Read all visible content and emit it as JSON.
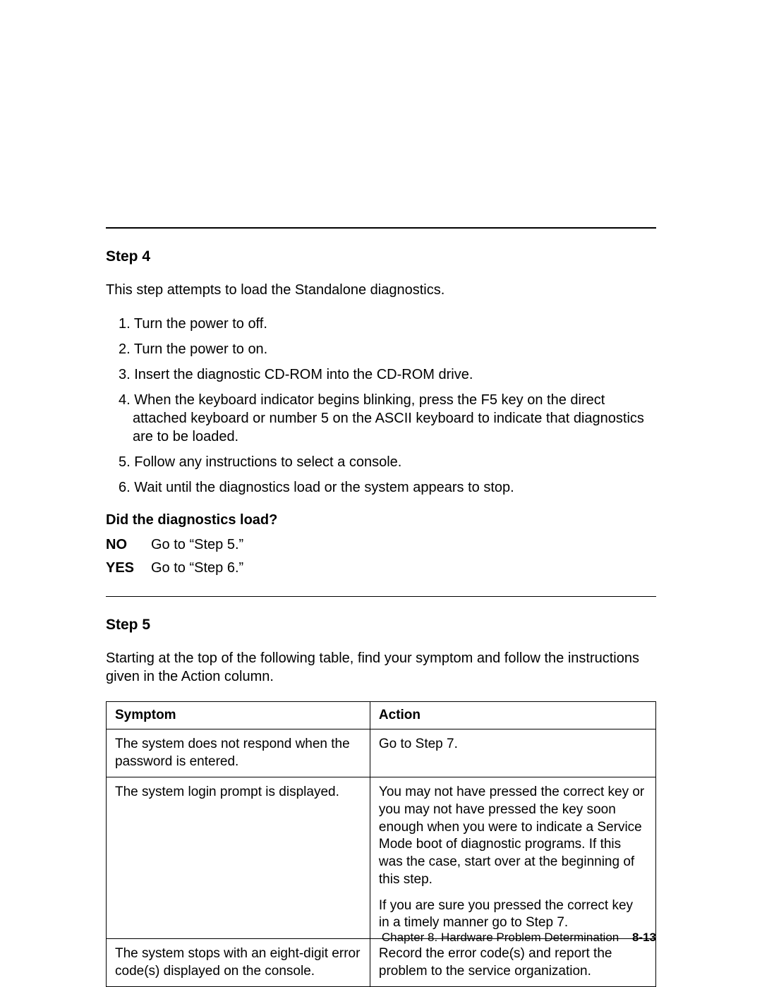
{
  "step4": {
    "heading": "Step 4",
    "intro": "This step attempts to load the Standalone diagnostics.",
    "list": [
      "Turn the power to off.",
      "Turn the power to on.",
      "Insert the diagnostic CD-ROM into the CD-ROM drive.",
      "When the keyboard indicator begins blinking, press the F5 key on the direct attached keyboard or number 5 on the ASCII keyboard to indicate that diagnostics are to be loaded.",
      "Follow any instructions to select a console.",
      "Wait until the diagnostics load or the system appears to stop."
    ],
    "question": "Did the diagnostics load?",
    "answers": {
      "no_label": "NO",
      "no_text": "Go to “Step 5.”",
      "yes_label": "YES",
      "yes_text": "Go to “Step 6.”"
    }
  },
  "step5": {
    "heading": "Step 5",
    "intro": "Starting at the top of the following table, find your symptom and follow the instructions given in the Action column.",
    "table": {
      "headers": {
        "symptom": "Symptom",
        "action": "Action"
      },
      "rows": [
        {
          "symptom": "The system does not respond when the password is entered.",
          "action_p1": "Go to Step 7.",
          "action_p2": ""
        },
        {
          "symptom": "The system login prompt is displayed.",
          "action_p1": "You may not have pressed the correct key or you may not have pressed the key soon enough when you were to indicate a Service Mode boot of diagnostic programs. If this was the case, start over at the beginning of this step.",
          "action_p2": "If you are sure you pressed the correct key in a timely manner go to Step 7."
        },
        {
          "symptom": "The system stops with an eight-digit error code(s) displayed on the console.",
          "action_p1": "Record the error code(s) and report the problem to the service organization.",
          "action_p2": ""
        }
      ]
    }
  },
  "footer": {
    "chapter_text": "Chapter 8. Hardware Problem Determination",
    "page_num": "8-13"
  }
}
